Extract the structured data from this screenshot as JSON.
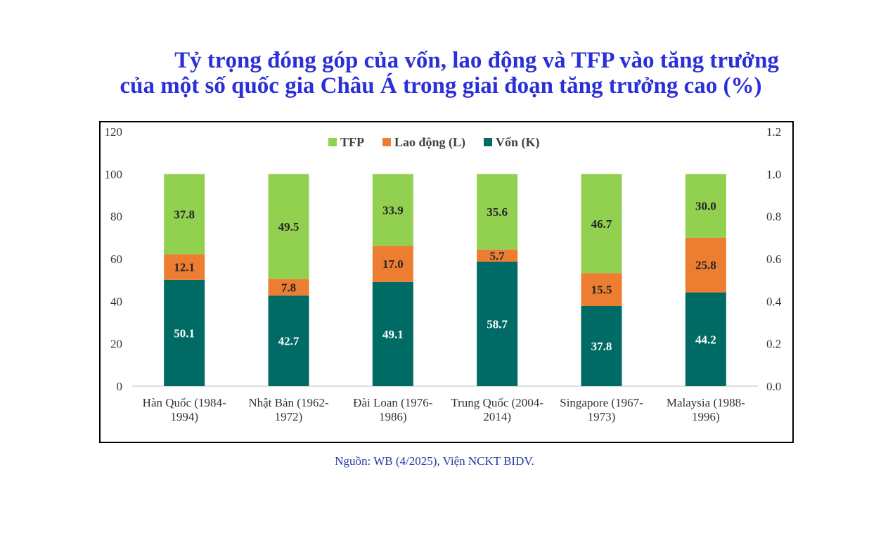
{
  "title_line1": "Tỷ trọng đóng góp của vốn, lao động và TFP vào tăng trưởng",
  "title_line2": "của một số quốc gia Châu Á trong giai đoạn tăng trưởng cao (%)",
  "source": "Nguồn: WB (4/2025),  Viện NCKT BIDV.",
  "chart_data": {
    "type": "bar",
    "stacked": true,
    "categories": [
      [
        "Hàn Quốc (1984-",
        "1994)"
      ],
      [
        "Nhật Bản (1962-",
        "1972)"
      ],
      [
        "Đài Loan (1976-",
        "1986)"
      ],
      [
        "Trung Quốc (2004-",
        "2014)"
      ],
      [
        "Singapore (1967-",
        "1973)"
      ],
      [
        "Malaysia (1988-",
        "1996)"
      ]
    ],
    "series": [
      {
        "name": "Vốn (K)",
        "color": "#006b64",
        "values": [
          50.1,
          42.7,
          49.1,
          58.7,
          37.8,
          44.2
        ]
      },
      {
        "name": "Lao động (L)",
        "color": "#ed7d31",
        "values": [
          12.1,
          7.8,
          17.0,
          5.7,
          15.5,
          25.8
        ]
      },
      {
        "name": "TFP",
        "color": "#92d050",
        "values": [
          37.8,
          49.5,
          33.9,
          35.6,
          46.7,
          30.0
        ]
      }
    ],
    "legend_order": [
      "TFP",
      "Lao động (L)",
      "Vốn (K)"
    ],
    "legend_position": "top",
    "ylim": [
      0,
      120
    ],
    "y_ticks": [
      "0",
      "20",
      "40",
      "60",
      "80",
      "100",
      "120"
    ],
    "y2lim": [
      0,
      1.2
    ],
    "y2_ticks": [
      "0.0",
      "0.2",
      "0.4",
      "0.6",
      "0.8",
      "1.0",
      "1.2"
    ],
    "grid": false
  }
}
